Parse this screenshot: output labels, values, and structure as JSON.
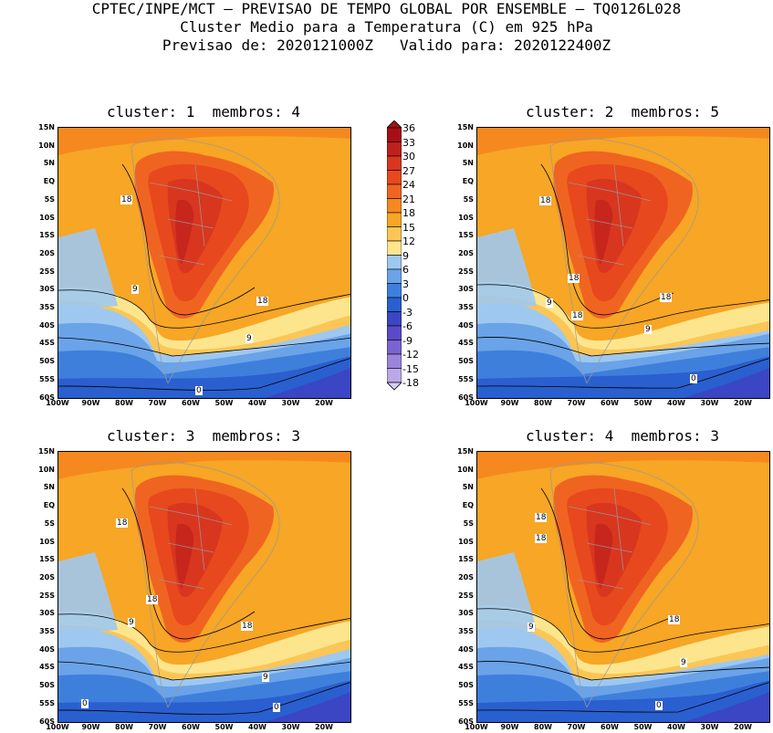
{
  "header": {
    "line1": "CPTEC/INPE/MCT — PREVISAO DE TEMPO GLOBAL POR ENSEMBLE — TQ0126L028",
    "line2": "Cluster Medio para a Temperatura (C) em 925 hPa",
    "line3": "Previsao de: 2020121000Z   Valido para: 2020122400Z"
  },
  "panels": [
    {
      "title": "cluster: 1  membros: 4",
      "labels": [
        "18",
        "9",
        "18",
        "9",
        "0"
      ]
    },
    {
      "title": "cluster: 2  membros: 5",
      "labels": [
        "18",
        "18",
        "9",
        "18",
        "18",
        "9",
        "0"
      ]
    },
    {
      "title": "cluster: 3  membros: 3",
      "labels": [
        "18",
        "18",
        "9",
        "18",
        "9",
        "0",
        "0"
      ]
    },
    {
      "title": "cluster: 4  membros: 3",
      "labels": [
        "18",
        "18",
        "9",
        "18",
        "9",
        "0"
      ]
    }
  ],
  "lat_labels": [
    "15N",
    "10N",
    "5N",
    "EQ",
    "5S",
    "10S",
    "15S",
    "20S",
    "25S",
    "30S",
    "35S",
    "40S",
    "45S",
    "50S",
    "55S",
    "60S"
  ],
  "lon_labels": [
    "100W",
    "90W",
    "80W",
    "70W",
    "60W",
    "50W",
    "40W",
    "30W",
    "20W"
  ],
  "colorbar": {
    "levels": [
      "36",
      "33",
      "30",
      "27",
      "24",
      "21",
      "18",
      "15",
      "12",
      "9",
      "6",
      "3",
      "0",
      "-3",
      "-6",
      "-9",
      "-12",
      "-15",
      "-18"
    ],
    "colors": [
      "#a50f15",
      "#c0201c",
      "#d8361f",
      "#e8481d",
      "#f06421",
      "#f5891f",
      "#f7a625",
      "#fbc655",
      "#fde58d",
      "#9fc8f0",
      "#6aa3e8",
      "#3f7fdc",
      "#2a5fcf",
      "#3a46c4",
      "#5a4ac8",
      "#7a64d2",
      "#9a84dc",
      "#bba8e8",
      "#d8ccf2"
    ]
  }
}
